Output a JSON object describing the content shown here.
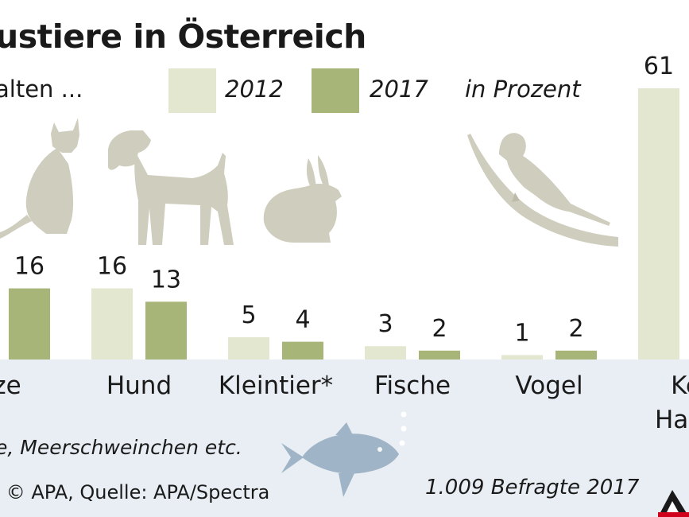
{
  "header": {
    "title": "ustiere in Österreich",
    "subtitle": "alten ...",
    "unit": "in Prozent"
  },
  "legend": [
    {
      "label": "2012",
      "color": "#e3e7cf"
    },
    {
      "label": "2017",
      "color": "#a8b578"
    }
  ],
  "footer": {
    "footnote": "e, Meerschweinchen etc.",
    "source": ": © APA, Quelle: APA/Spectra",
    "respondents": "1.009 Befragte 2017"
  },
  "icons": [
    "cat-silhouette",
    "dog-silhouette",
    "rabbit-silhouette",
    "parrot-silhouette",
    "fish-illustration",
    "apa-logo"
  ],
  "chart_data": {
    "type": "bar",
    "categories": [
      "tze",
      "Hund",
      "Kleintier*",
      "Fische",
      "Vogel",
      "Ke"
    ],
    "category_lines": [
      [
        "tze"
      ],
      [
        "Hund"
      ],
      [
        "Kleintier*"
      ],
      [
        "Fische"
      ],
      [
        "Vogel"
      ],
      [
        "Ke",
        "Haus"
      ]
    ],
    "series": [
      {
        "name": "2012",
        "values": [
          null,
          16,
          5,
          3,
          1,
          61
        ],
        "color": "#e3e7cf"
      },
      {
        "name": "2017",
        "values": [
          16,
          13,
          4,
          2,
          2,
          null
        ],
        "color": "#a8b578"
      }
    ],
    "value_labels": [
      [
        "",
        "16",
        "5",
        "3",
        "1",
        "61"
      ],
      [
        "16",
        "13",
        "4",
        "2",
        "2",
        ""
      ]
    ],
    "ylim": [
      0,
      61
    ],
    "legend_position": "top",
    "grid": false
  }
}
